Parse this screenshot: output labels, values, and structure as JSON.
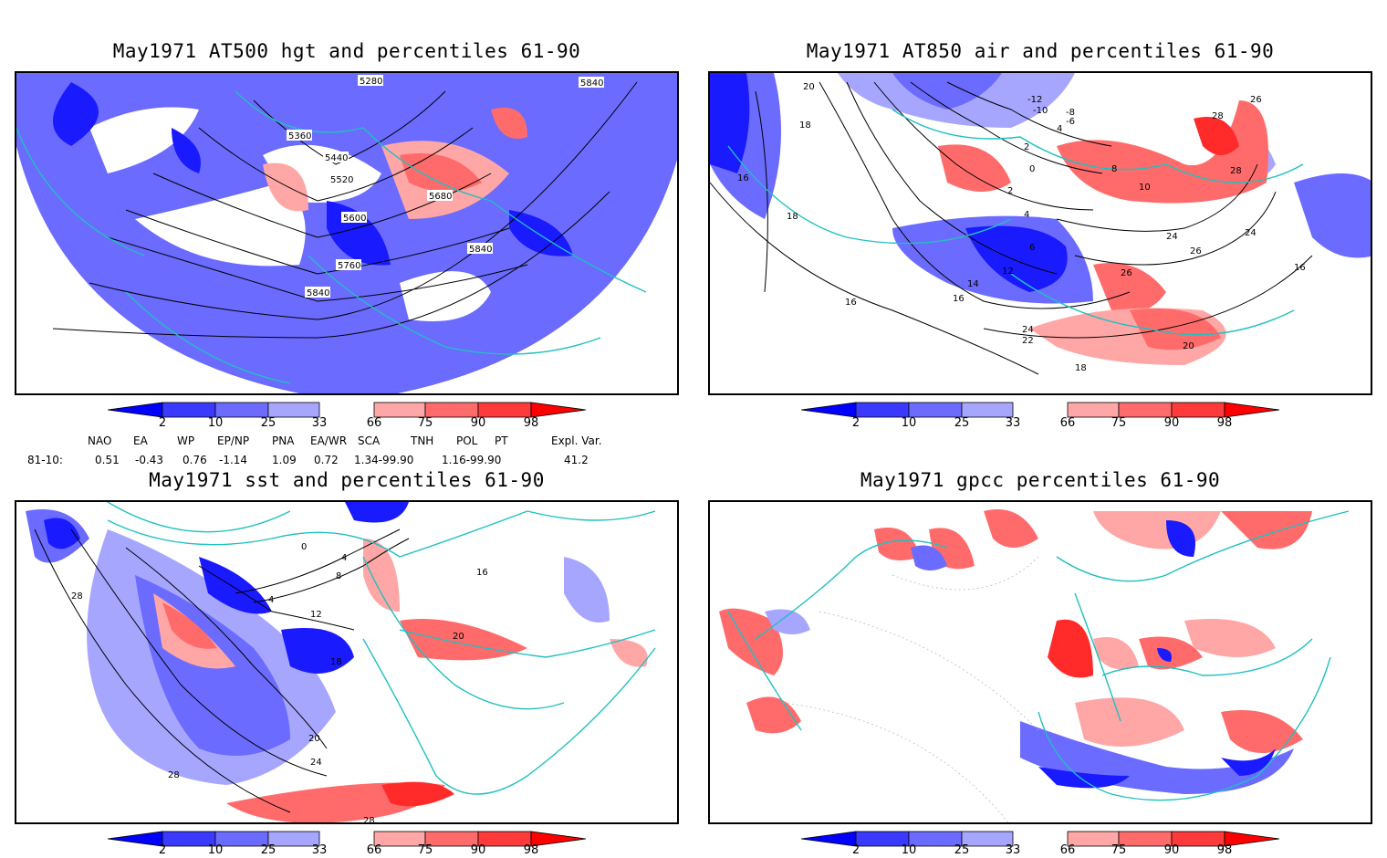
{
  "panels": [
    {
      "id": "p1",
      "title": "May1971 AT500 hgt and percentiles 61-90",
      "contour_labels": [
        "5280",
        "5360",
        "5440",
        "5520",
        "5600",
        "5680",
        "5760",
        "5840",
        "5840",
        "5840"
      ]
    },
    {
      "id": "p2",
      "title": "May1971 AT850 air and percentiles 61-90",
      "contour_labels": [
        "20",
        "18",
        "16",
        "18",
        "16",
        "-12",
        "-10",
        "-8",
        "-6",
        "4",
        "2",
        "0",
        "2",
        "4",
        "6",
        "8",
        "10",
        "12",
        "14",
        "16",
        "24",
        "26",
        "28",
        "24",
        "26",
        "28",
        "26",
        "20",
        "22",
        "24",
        "18",
        "16"
      ]
    },
    {
      "id": "p3",
      "title": "May1971 sst and percentiles 61-90",
      "contour_labels": [
        "28",
        "0",
        "4",
        "8",
        "4",
        "12",
        "16",
        "18",
        "20",
        "20",
        "24",
        "28",
        "28"
      ]
    },
    {
      "id": "p4",
      "title": "May1971 gpcc percentiles 61-90",
      "contour_labels": []
    }
  ],
  "colorbar": {
    "labels": [
      "2",
      "10",
      "25",
      "33",
      "66",
      "75",
      "90",
      "98"
    ],
    "colors": [
      "#0000ff",
      "#3a3aff",
      "#6b6bff",
      "#a6a6ff",
      "#ffa6a6",
      "#ff6b6b",
      "#ff3a3a",
      "#ff0000"
    ]
  },
  "indices": {
    "header": [
      "NAO",
      "EA",
      "WP",
      "EP/NP",
      "PNA",
      "EA/WR",
      "SCA",
      "TNH",
      "POL",
      "PT",
      "Expl. Var."
    ],
    "row_label": "81-10:",
    "values": [
      "0.51",
      "-0.43",
      "0.76",
      "-1.14",
      "1.09",
      "0.72",
      "1.34-99.90",
      "1.16-99.90",
      "41.2"
    ]
  },
  "colors": {
    "coast": "#20c0c0",
    "blue_dark": "#1a1aff",
    "blue_mid": "#6b6bff",
    "blue_light": "#a6a6ff",
    "red_light": "#ffa6a6",
    "red_mid": "#ff6b6b",
    "red_dark": "#ff2a2a"
  }
}
